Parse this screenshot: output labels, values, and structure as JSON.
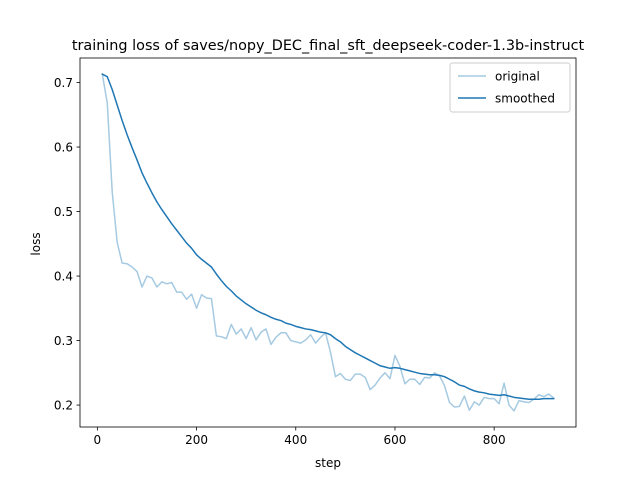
{
  "chart_data": {
    "type": "line",
    "title": "training loss of saves/nopy_DEC_final_sft_deepseek-coder-1.3b-instruct",
    "xlabel": "step",
    "ylabel": "loss",
    "xlim": [
      -35,
      965
    ],
    "ylim": [
      0.166,
      0.738
    ],
    "xticks": [
      0,
      200,
      400,
      600,
      800
    ],
    "yticks": [
      0.2,
      0.3,
      0.4,
      0.5,
      0.6,
      0.7
    ],
    "xtick_labels": [
      "0",
      "200",
      "400",
      "600",
      "800"
    ],
    "ytick_labels": [
      "0.2",
      "0.3",
      "0.4",
      "0.5",
      "0.6",
      "0.7"
    ],
    "grid": false,
    "legend_position": "top-right",
    "series": [
      {
        "name": "original",
        "color": "#a6cae2",
        "x": [
          10,
          20,
          30,
          40,
          50,
          60,
          70,
          80,
          90,
          100,
          110,
          120,
          130,
          140,
          150,
          160,
          170,
          180,
          190,
          200,
          210,
          220,
          230,
          240,
          250,
          260,
          270,
          280,
          290,
          300,
          310,
          320,
          330,
          340,
          350,
          360,
          370,
          380,
          390,
          400,
          410,
          420,
          430,
          440,
          450,
          460,
          470,
          480,
          490,
          500,
          510,
          520,
          530,
          540,
          550,
          560,
          570,
          580,
          590,
          600,
          610,
          620,
          630,
          640,
          650,
          660,
          670,
          680,
          690,
          700,
          710,
          720,
          730,
          740,
          750,
          760,
          770,
          780,
          790,
          800,
          810,
          820,
          830,
          840,
          850,
          860,
          870,
          880,
          890,
          900,
          910,
          920
        ],
        "y": [
          0.713,
          0.668,
          0.53,
          0.452,
          0.42,
          0.419,
          0.414,
          0.407,
          0.383,
          0.4,
          0.397,
          0.383,
          0.391,
          0.388,
          0.39,
          0.375,
          0.375,
          0.364,
          0.372,
          0.35,
          0.371,
          0.366,
          0.365,
          0.307,
          0.306,
          0.303,
          0.325,
          0.31,
          0.318,
          0.303,
          0.32,
          0.301,
          0.313,
          0.318,
          0.294,
          0.305,
          0.312,
          0.312,
          0.3,
          0.298,
          0.296,
          0.301,
          0.309,
          0.296,
          0.305,
          0.312,
          0.282,
          0.244,
          0.249,
          0.24,
          0.238,
          0.248,
          0.248,
          0.243,
          0.224,
          0.231,
          0.242,
          0.25,
          0.241,
          0.277,
          0.26,
          0.233,
          0.24,
          0.24,
          0.232,
          0.243,
          0.242,
          0.25,
          0.245,
          0.23,
          0.204,
          0.197,
          0.198,
          0.214,
          0.192,
          0.205,
          0.2,
          0.212,
          0.21,
          0.21,
          0.202,
          0.234,
          0.2,
          0.191,
          0.207,
          0.205,
          0.204,
          0.209,
          0.216,
          0.213,
          0.217,
          0.211
        ]
      },
      {
        "name": "smoothed",
        "color": "#1f77b4",
        "x": [
          10,
          20,
          30,
          40,
          50,
          60,
          70,
          80,
          90,
          100,
          110,
          120,
          130,
          140,
          150,
          160,
          170,
          180,
          190,
          200,
          210,
          220,
          230,
          240,
          250,
          260,
          270,
          280,
          290,
          300,
          310,
          320,
          330,
          340,
          350,
          360,
          370,
          380,
          390,
          400,
          410,
          420,
          430,
          440,
          450,
          460,
          470,
          480,
          490,
          500,
          510,
          520,
          530,
          540,
          550,
          560,
          570,
          580,
          590,
          600,
          610,
          620,
          630,
          640,
          650,
          660,
          670,
          680,
          690,
          700,
          710,
          720,
          730,
          740,
          750,
          760,
          770,
          780,
          790,
          800,
          810,
          820,
          830,
          840,
          850,
          860,
          870,
          880,
          890,
          900,
          910,
          920
        ],
        "y": [
          0.713,
          0.709,
          0.689,
          0.665,
          0.641,
          0.619,
          0.599,
          0.58,
          0.56,
          0.544,
          0.529,
          0.515,
          0.503,
          0.492,
          0.481,
          0.471,
          0.461,
          0.451,
          0.443,
          0.433,
          0.426,
          0.42,
          0.414,
          0.403,
          0.393,
          0.384,
          0.377,
          0.369,
          0.363,
          0.357,
          0.352,
          0.347,
          0.343,
          0.34,
          0.336,
          0.333,
          0.331,
          0.327,
          0.325,
          0.322,
          0.32,
          0.318,
          0.317,
          0.315,
          0.313,
          0.312,
          0.309,
          0.303,
          0.298,
          0.291,
          0.286,
          0.281,
          0.277,
          0.273,
          0.269,
          0.265,
          0.261,
          0.259,
          0.257,
          0.258,
          0.257,
          0.255,
          0.253,
          0.251,
          0.249,
          0.248,
          0.247,
          0.247,
          0.246,
          0.244,
          0.24,
          0.236,
          0.231,
          0.229,
          0.225,
          0.222,
          0.22,
          0.219,
          0.217,
          0.216,
          0.215,
          0.216,
          0.214,
          0.212,
          0.211,
          0.21,
          0.209,
          0.209,
          0.209,
          0.21,
          0.21,
          0.21
        ]
      }
    ]
  }
}
